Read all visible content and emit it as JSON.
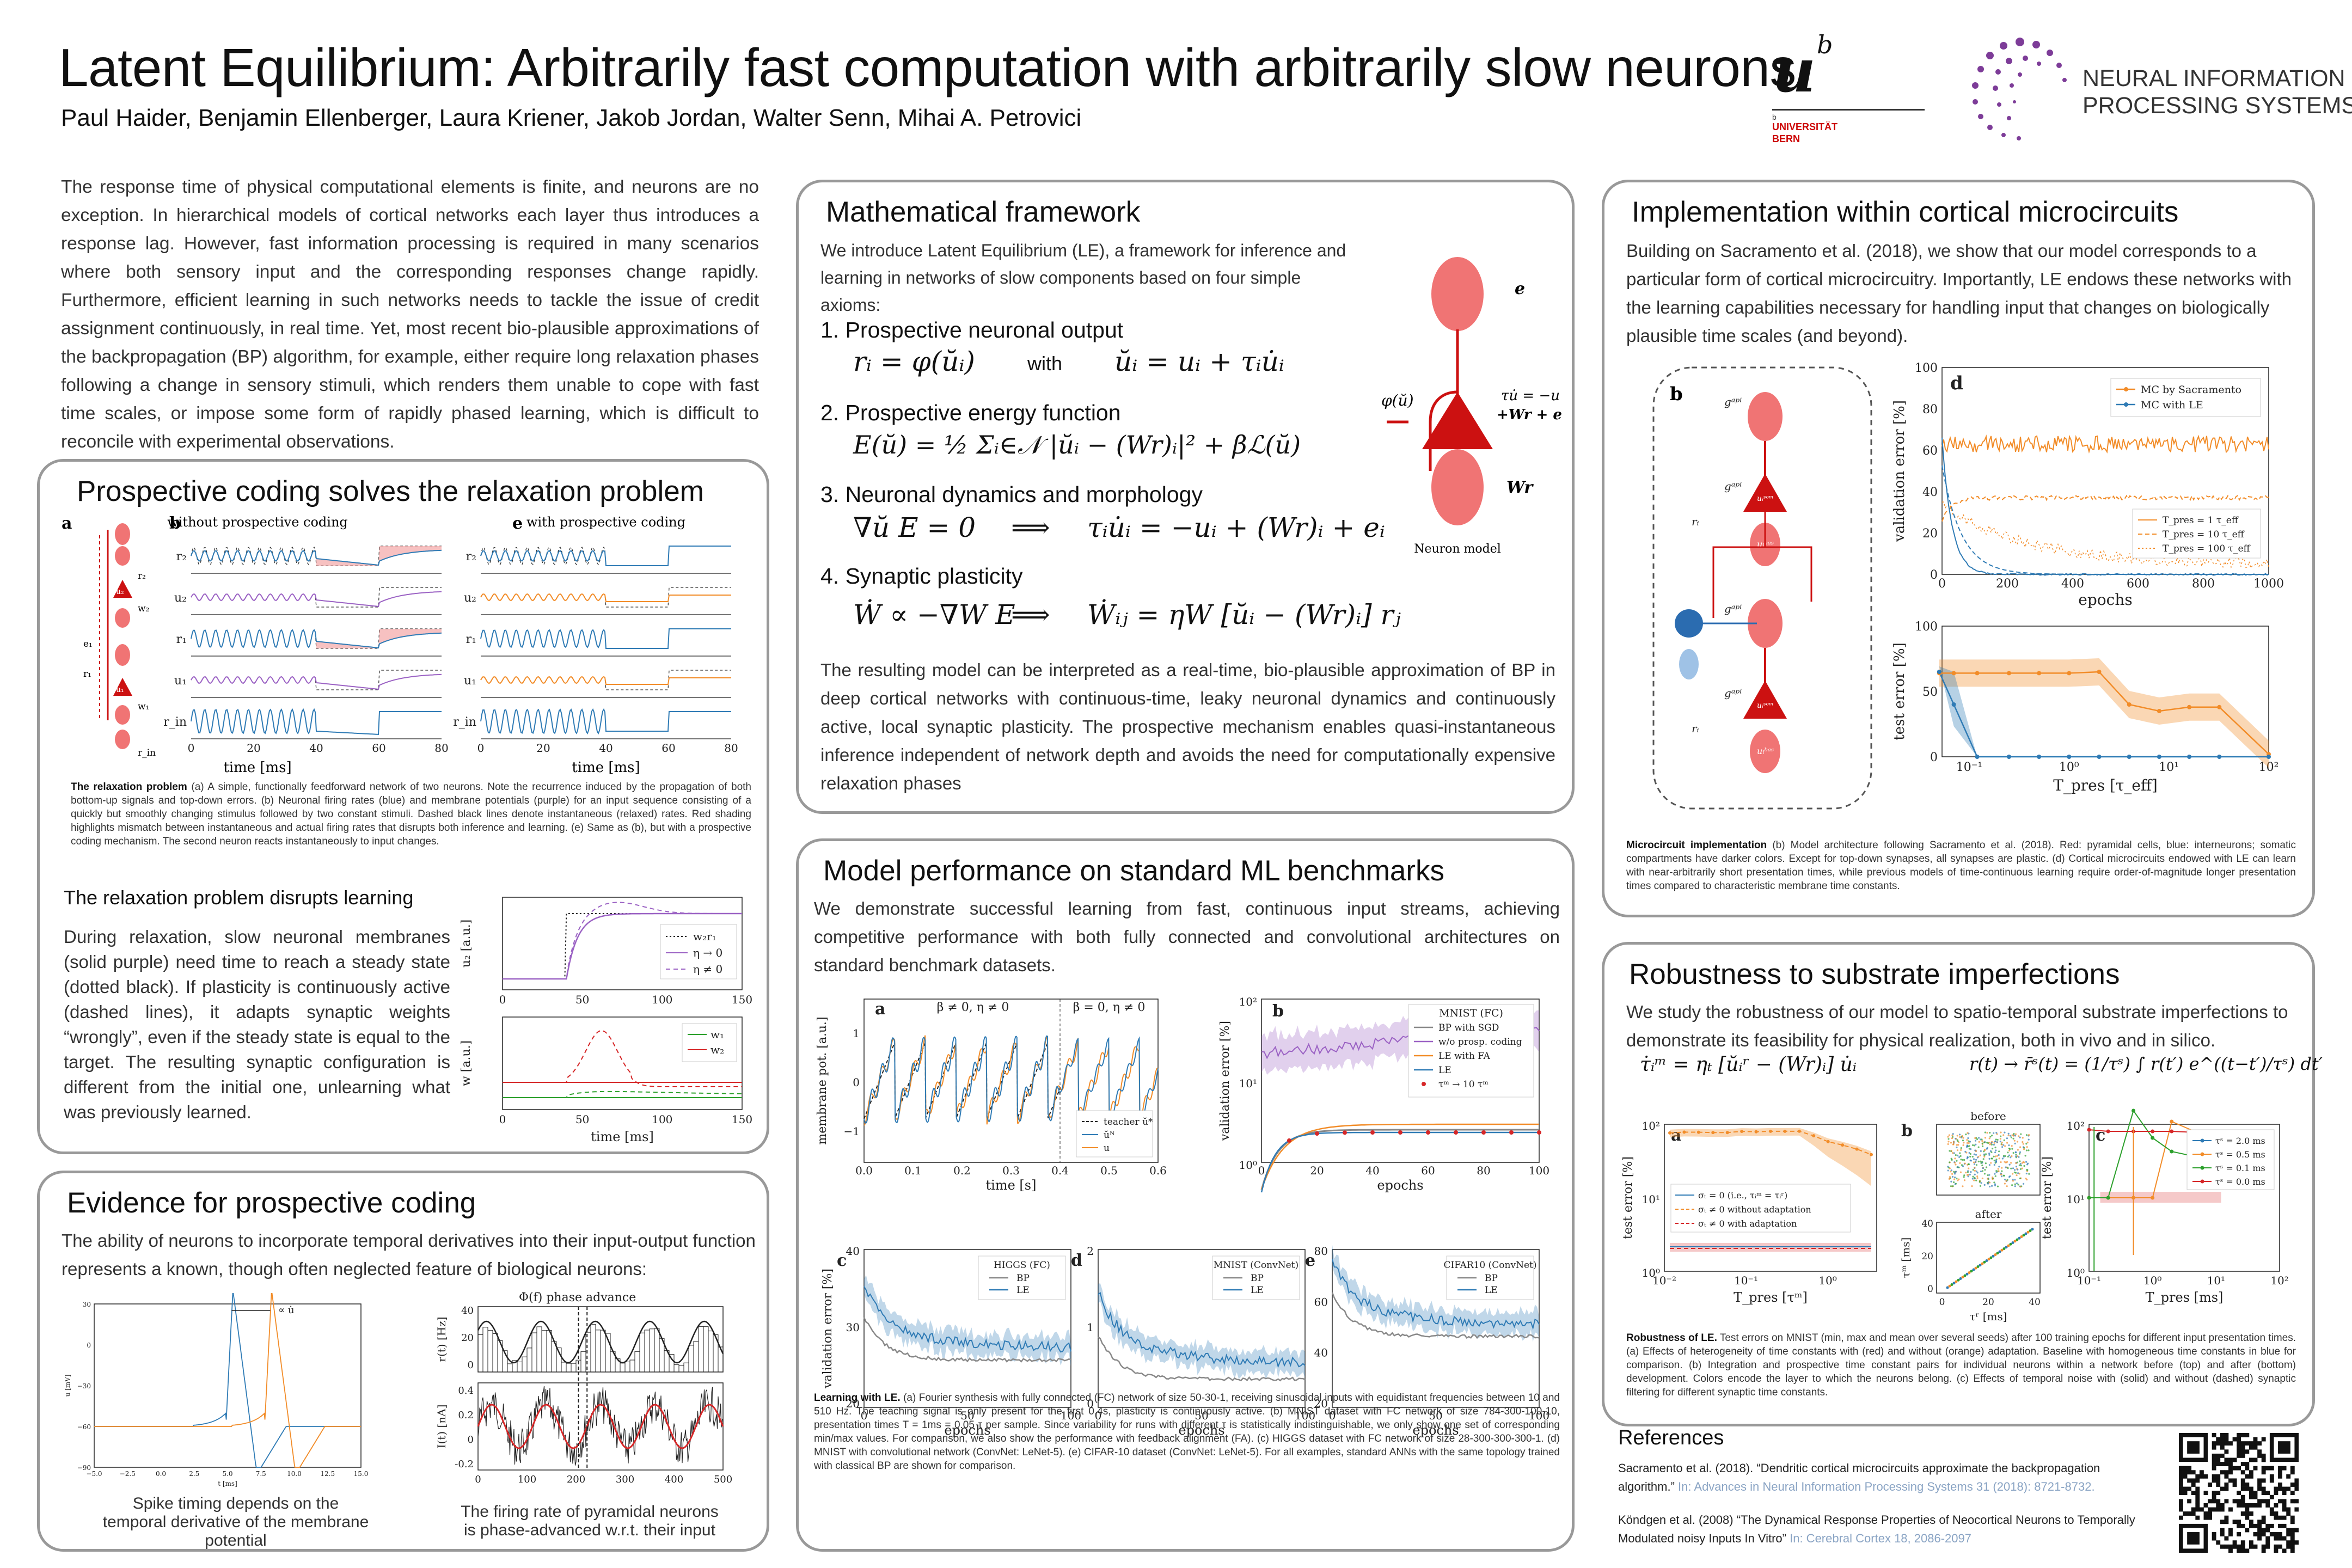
{
  "header": {
    "title": "Latent Equilibrium: Arbitrarily fast computation with arbitrarily slow neurons",
    "authors": "Paul Haider, Benjamin Ellenberger, Laura Kriener, Jakob Jordan, Walter Senn, Mihai A. Petrovici",
    "unibe": {
      "mark": "u",
      "sup": "b",
      "line1": "b",
      "line2": "UNIVERSITÄT",
      "line3": "BERN"
    },
    "neurips": {
      "line1": "NEURAL INFORMATION",
      "line2": "PROCESSING SYSTEMS"
    }
  },
  "intro": "The response time of physical computational elements is finite, and neurons are no exception. In hierarchical models of cortical networks each layer thus introduces a response lag. However, fast information processing is required in many scenarios where both sensory input and the corresponding responses change rapidly. Furthermore, efficient learning in such networks needs to tackle the issue of credit assignment continuously, in real time. Yet, most recent bio-plausible approximations of the backpropagation (BP) algorithm, for example, either require long relaxation phases following a change in sensory stimuli, which renders them unable to cope with fast time scales, or impose some form of rapidly phased learning, which is difficult to reconcile with experimental observations.",
  "prospective": {
    "title": "Prospective coding solves the relaxation problem",
    "panel_a": "a",
    "panel_b": "b",
    "panel_e": "e",
    "b_title": "without prospective coding",
    "e_title": "with prospective coding",
    "traces": [
      "r₂",
      "u₂",
      "r₁",
      "u₁",
      "r_in"
    ],
    "neuron_labels": [
      "r₂",
      "u₂",
      "w₂",
      "e₁",
      "r₁",
      "u₁",
      "w₁",
      "r_in"
    ],
    "xticks": [
      "0",
      "20",
      "40",
      "60",
      "80"
    ],
    "xlabel": "time [ms]",
    "caption_bold": "The relaxation problem",
    "caption": " (a) A simple, functionally feedforward network of two neurons. Note the recurrence induced by the propagation of both bottom-up signals and top-down errors. (b) Neuronal firing rates (blue) and membrane potentials (purple) for an input sequence consisting of a quickly but smoothly changing stimulus followed by two constant stimuli. Dashed black lines denote instantaneous (relaxed) rates. Red shading highlights mismatch between instantaneous and  actual firing rates that disrupts both inference and learning. (e) Same as (b), but with a prospective coding mechanism. The second neuron reacts instantaneously to input changes.",
    "sub_title": "The relaxation problem disrupts learning",
    "sub_text": "During relaxation, slow neuronal membranes (solid purple) need time to reach a steady state (dotted black). If plasticity is continuously active (dashed lines), it adapts synaptic weights “wrongly”, even if the steady state is equal to the target. The resulting synaptic configuration is different from the initial one, unlearning what was previously learned.",
    "plot_u": {
      "ylabel": "u₂ [a.u.]",
      "legend": [
        "w₂r₁",
        "η → 0",
        "η ≠ 0"
      ]
    },
    "plot_w": {
      "ylabel": "w [a.u.]",
      "legend": [
        "w₁",
        "w₂"
      ],
      "xticks": [
        "0",
        "50",
        "100",
        "150"
      ],
      "xlabel": "time [ms]"
    }
  },
  "evidence": {
    "title": "Evidence for prospective coding",
    "text": "The ability of neurons to incorporate temporal derivatives into their input-output function represents a known, though often neglected feature of biological neurons:",
    "left_annot": "∝ u̇",
    "left_yticks": [
      "30",
      "0",
      "−30",
      "−60",
      "−90"
    ],
    "left_xticks": [
      "−5.0",
      "−2.5",
      "0.0",
      "2.5",
      "5.0",
      "7.5",
      "10.0",
      "12.5",
      "15.0"
    ],
    "left_ylabel": "u [mV]",
    "left_xlabel": "t [ms]",
    "left_caption": "Spike timing depends on the temporal derivative of the membrane potential",
    "right_annot": "Φ(f) phase advance",
    "right_ylabel_top": "r(t) [Hz]",
    "right_ylabel_bottom": "I(t) [nA]",
    "right_yticks_top": [
      "40",
      "20",
      "0"
    ],
    "right_yticks_bottom": [
      "0.4",
      "0.2",
      "0",
      "-0.2"
    ],
    "right_xticks": [
      "0",
      "100",
      "200",
      "300",
      "400",
      "500"
    ],
    "right_xlabel": "Time [msec]",
    "right_caption": "The firing rate of pyramidal neurons is phase-advanced w.r.t. their input"
  },
  "math": {
    "title": "Mathematical framework",
    "intro": "We introduce Latent Equilibrium (LE), a framework for inference and learning in networks of slow components based on four simple axioms:",
    "axioms": [
      "1. Prospective neuronal output",
      "2. Prospective energy function",
      "3. Neuronal dynamics and morphology",
      "4. Synaptic plasticity"
    ],
    "eq1a": "rᵢ = φ(ŭᵢ)",
    "eq1_with": "with",
    "eq1b": "ŭᵢ = uᵢ + τᵢu̇ᵢ",
    "eq2": "E(ŭ) = ½ Σᵢ∈𝒩 |ŭᵢ − (Wr)ᵢ|² + βℒ(ŭ)",
    "eq3a": "∇ŭ E = 0",
    "eq3arrow": "⟹",
    "eq3b": "τᵢu̇ᵢ = −uᵢ + (Wr)ᵢ + eᵢ",
    "eq4a": "Ẇ ∝ −∇W E",
    "eq4arrow": "⟹",
    "eq4b": "Ẇᵢⱼ = ηW [ŭᵢ − (Wr)ᵢ] rⱼ",
    "model": {
      "e": "e",
      "phi": "φ(ŭ)",
      "dyn1": "τu̇ = −u",
      "dyn2": "+Wr + e",
      "wr": "Wr",
      "label": "Neuron model"
    },
    "outro": "The resulting model can be interpreted as a real-time, bio-plausible approximation of BP in deep cortical networks with continuous-time, leaky neuronal dynamics and continuously active, local synaptic plasticity. The prospective mechanism enables quasi-instantaneous inference independent of network depth and avoids the need for computationally expensive relaxation phases"
  },
  "benchmarks": {
    "title": "Model performance on standard ML benchmarks",
    "text": "We demonstrate successful learning from fast, continuous input streams, achieving competitive performance with both fully connected and convolutional architectures on standard benchmark datasets.",
    "a": {
      "label": "a",
      "ylabel": "membrane pot. [a.u.]",
      "xlabel": "time [s]",
      "xticks": [
        "0.0",
        "0.1",
        "0.2",
        "0.3",
        "0.4",
        "0.5",
        "0.6"
      ],
      "yticks": [
        "1",
        "0",
        "−1"
      ],
      "top1": "β ≠ 0, η ≠ 0",
      "top2": "β = 0, η ≠ 0",
      "legend": [
        "teacher ŭ*",
        "ŭᴺ",
        "u"
      ]
    },
    "b": {
      "label": "b",
      "ylabel": "validation error [%]",
      "xlabel": "epochs",
      "xticks": [
        "0",
        "20",
        "40",
        "60",
        "80",
        "100"
      ],
      "yticks": [
        "10²",
        "10¹",
        "10⁰"
      ],
      "legend_title": "MNIST (FC)",
      "legend": [
        "BP with SGD",
        "w/o prosp. coding",
        "LE with FA",
        "LE",
        "τᵐ → 10 τᵐ"
      ]
    },
    "c": {
      "label": "c",
      "title": "HIGGS (FC)",
      "legend": [
        "BP",
        "LE"
      ],
      "xlabel": "epochs",
      "xticks": [
        "0",
        "50",
        "100"
      ],
      "yticks": [
        "40",
        "30",
        "20"
      ],
      "ylabel": "validation error [%]"
    },
    "d": {
      "label": "d",
      "title": "MNIST (ConvNet)",
      "legend": [
        "BP",
        "LE"
      ],
      "xlabel": "epochs",
      "xticks": [
        "0",
        "50",
        "100"
      ],
      "yticks": [
        "2",
        "1",
        "0"
      ]
    },
    "e": {
      "label": "e",
      "title": "CIFAR10 (ConvNet)",
      "legend": [
        "BP",
        "LE"
      ],
      "xlabel": "epochs",
      "xticks": [
        "0",
        "50",
        "100"
      ],
      "yticks": [
        "80",
        "60",
        "40",
        "20"
      ]
    },
    "caption_bold": "Learning with LE.",
    "caption": " (a) Fourier synthesis with fully connected (FC) network of size 50-30-1, receiving sinusoidal inputs with equidistant frequencies between 10 and 510 Hz. The teaching signal is only present for the first 0.4s, plasticity is continuously active. (b) MNIST dataset with FC network of size 784-300-100-10, presentation times T = 1ms = 0.05 τ per sample. Since variability for runs with different τ is statistically indistinguishable, we only show one set of corresponding min/max values. For comparison, we also show the performance with feedback alignment (FA). (c) HIGGS dataset with FC network of size 28-300-300-300-1. (d) MNIST with convolutional network (ConvNet: LeNet-5). (e) CIFAR-10 dataset (ConvNet: LeNet-5). For all examples, standard ANNs with the same topology trained with classical BP are shown for comparison."
  },
  "microcircuit": {
    "title": "Implementation within cortical microcircuits",
    "text": "Building on Sacramento et al. (2018), we show that our model corresponds to a particular form of cortical microcircuitry. Importantly, LE endows these networks with the learning capabilities necessary for handling input that changes on biologically plausible time scales (and beyond).",
    "b_label": "b",
    "d_label": "d",
    "labels": [
      "gᵃᵖⁱ",
      "uᵢᵃᵖⁱ",
      "gᵃᵖⁱ",
      "uᵢˢᵒᵐ",
      "gᵇᵃˢ",
      "uᵢᵇᵃˢ",
      "rᵢ"
    ],
    "d_plot": {
      "ylabel": "validation error [%]",
      "xlabel": "epochs",
      "xticks": [
        "0",
        "200",
        "400",
        "600",
        "800",
        "1000"
      ],
      "yticks": [
        "100",
        "80",
        "60",
        "40",
        "20",
        "0"
      ],
      "legend": [
        "MC by Sacramento",
        "MC with LE"
      ],
      "legend2": [
        "T_pres = 1 τ_eff",
        "T_pres = 10 τ_eff",
        "T_pres = 100 τ_eff"
      ]
    },
    "e_plot": {
      "ylabel": "test error [%]",
      "xlabel": "T_pres [τ_eff]",
      "xticks": [
        "10⁻¹",
        "10⁰",
        "10¹",
        "10²"
      ],
      "yticks": [
        "100",
        "50",
        "0"
      ]
    },
    "caption_bold": "Microcircuit implementation",
    "caption": " (b) Model architecture following Sacramento et al. (2018). Red: pyramidal cells, blue: interneurons; somatic compartments have darker colors. Except for top-down synapses, all synapses are plastic. (d) Cortical microcircuits endowed with LE can learn with near-arbitrarily short presentation times, while previous models of time-continuous learning require order-of-magnitude longer presentation times compared to characteristic membrane time constants."
  },
  "robustness": {
    "title": "Robustness to substrate imperfections",
    "text": "We study the robustness of our model to spatio-temporal substrate  imperfections to demonstrate its feasibility for physical realization, both in vivo and in silico.",
    "eq_left": "τ̇ᵢᵐ = ηₜ [ŭᵢʳ − (Wr)ᵢ] u̇ᵢ",
    "eq_right": "r(t) → r̄ˢ(t) = (1/τˢ) ∫ r(t′) e^((t−t′)/τˢ) dt′",
    "a": {
      "label": "a",
      "ylabel": "test error [%]",
      "xlabel": "T_pres [τᵐ]",
      "xticks": [
        "10⁻²",
        "10⁻¹",
        "10⁰"
      ],
      "yticks": [
        "10²",
        "10¹",
        "10⁰"
      ],
      "legend": [
        "σₜ = 0 (i.e., τᵢᵐ = τᵢʳ)",
        "σₜ ≠ 0 without adaptation",
        "σₜ ≠ 0 with adaptation"
      ]
    },
    "b": {
      "label": "b",
      "before": "before",
      "after": "after",
      "ylabel": "τᵐ [ms]",
      "xlabel": "τʳ [ms]",
      "xticks": [
        "0",
        "20",
        "40"
      ],
      "yticks": [
        "40",
        "20",
        "0"
      ]
    },
    "c": {
      "label": "c",
      "ylabel": "test error [%]",
      "xlabel": "T_pres [ms]",
      "xticks": [
        "10⁻¹",
        "10⁰",
        "10¹",
        "10²"
      ],
      "yticks": [
        "10²",
        "10¹",
        "10⁰"
      ],
      "legend": [
        "τˢ = 2.0 ms",
        "τˢ = 0.5 ms",
        "τˢ = 0.1 ms",
        "τˢ = 0.0 ms"
      ]
    },
    "caption_bold": "Robustness of LE.",
    "caption": " Test errors on MNIST (min, max and mean over several seeds) after 100 training epochs for different input presentation times. (a) Effects of heterogeneity of time constants with (red) and without (orange) adaptation. Baseline with homogeneous time constants in blue for comparison. (b) Integration and prospective time constant pairs for individual neurons within a network before (top) and after (bottom) development. Colors encode the layer to which the neurons belong. (c) Effects of temporal noise with (solid) and without (dashed) synaptic filtering for different synaptic time constants."
  },
  "references": {
    "title": "References",
    "items": [
      {
        "text": "Sacramento et al.  (2018). “Dendritic cortical microcircuits approximate the backpropagation algorithm.”",
        "source": " In: Advances in Neural Information Processing Systems 31 (2018): 8721-8732."
      },
      {
        "text": "Köndgen et al. (2008) “The Dynamical Response Properties of Neocortical Neurons to Temporally Modulated noisy Inputs In Vitro”",
        "source": " In: Cerebral Cortex 18, 2086-2097"
      }
    ]
  },
  "colors": {
    "blue": "#2f7bb5",
    "orange": "#f28c28",
    "purple": "#9b62c4",
    "red": "#d62728",
    "green": "#2ca02c",
    "neuron_red": "#cc1111",
    "neuron_pink": "#f07474",
    "border": "#999999"
  }
}
